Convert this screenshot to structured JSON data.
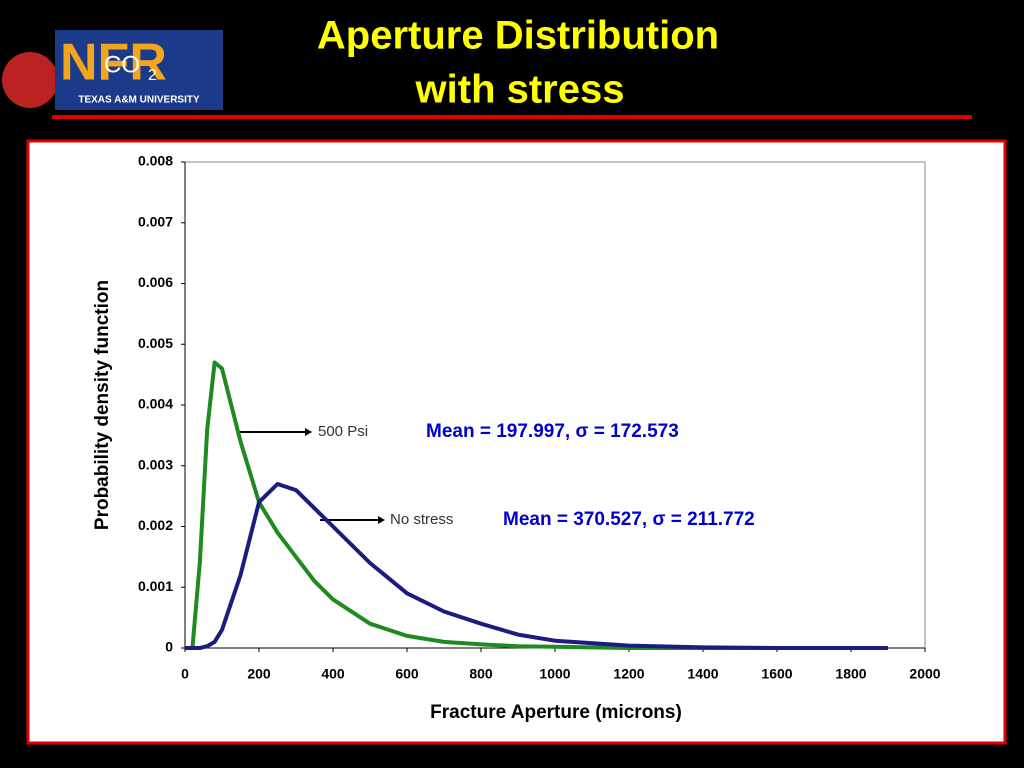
{
  "logo": {
    "main": "NFR",
    "chem": "CO",
    "sub": "2",
    "university": "TEXAS A&M UNIVERSITY"
  },
  "header": {
    "title_line1": "Aperture Distribution",
    "title_line2": "with stress"
  },
  "chart_data": {
    "type": "line",
    "x_label": "Fracture Aperture (microns)",
    "y_label": "Probability density function",
    "x": [
      0,
      20,
      40,
      60,
      80,
      100,
      150,
      200,
      250,
      300,
      350,
      400,
      500,
      600,
      700,
      800,
      900,
      1000,
      1200,
      1400,
      1600,
      1800,
      1900
    ],
    "series": [
      {
        "name": "500 Psi",
        "color": "#1f8a1f",
        "values": [
          0,
          0,
          0.0014,
          0.0036,
          0.0047,
          0.0046,
          0.0034,
          0.0024,
          0.0019,
          0.0015,
          0.0011,
          0.0008,
          0.0004,
          0.0002,
          0.0001,
          6e-05,
          3e-05,
          2e-05,
          0,
          0,
          0,
          0,
          0
        ]
      },
      {
        "name": "No stress",
        "color": "#1c1c80",
        "values": [
          0,
          0,
          0,
          3e-05,
          0.0001,
          0.0003,
          0.0012,
          0.0024,
          0.0027,
          0.0026,
          0.0023,
          0.002,
          0.0014,
          0.0009,
          0.0006,
          0.0004,
          0.00022,
          0.00012,
          4e-05,
          1e-05,
          0,
          0,
          0
        ]
      }
    ],
    "annotations": [
      "Mean = 197.997, σ = 172.573",
      "Mean = 370.527, σ = 211.772"
    ],
    "xlim": [
      0,
      2000
    ],
    "xticks": [
      0,
      200,
      400,
      600,
      800,
      1000,
      1200,
      1400,
      1600,
      1800,
      2000
    ],
    "ylim": [
      0,
      0.008
    ],
    "yticks": [
      0,
      0.001,
      0.002,
      0.003,
      0.004,
      0.005,
      0.006,
      0.007,
      0.008
    ],
    "grid": false
  }
}
